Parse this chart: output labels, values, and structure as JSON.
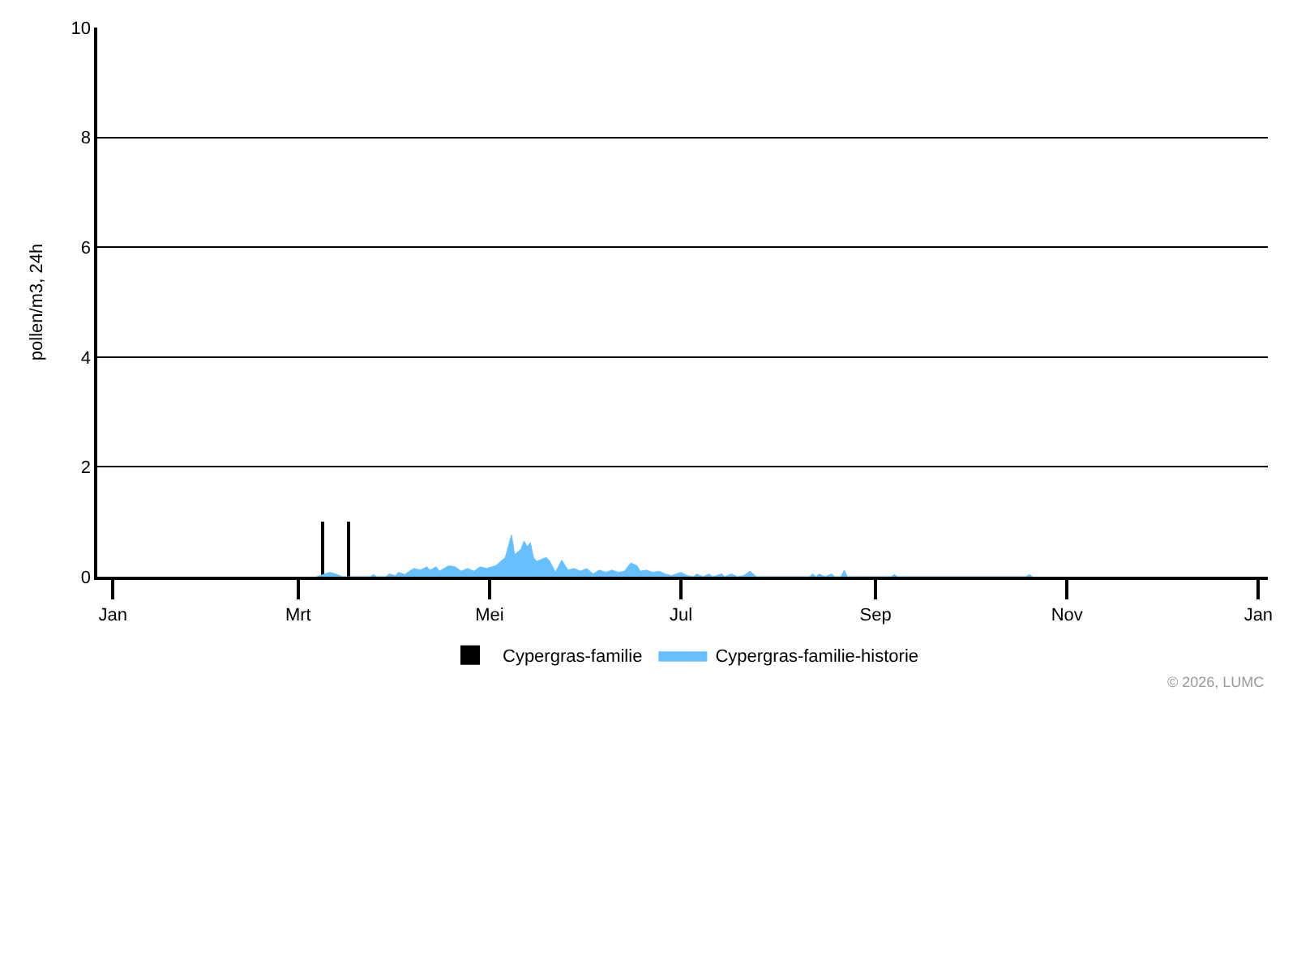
{
  "chart_data": {
    "type": "area",
    "ylabel": "pollen/m3, 24h",
    "xlim": [
      "2025-12-27",
      "2027-01-04"
    ],
    "xticks": [
      {
        "value": "2026-01-01",
        "label": "Jan"
      },
      {
        "value": "2026-03-01",
        "label": "Mrt"
      },
      {
        "value": "2026-05-01",
        "label": "Mei"
      },
      {
        "value": "2026-07-01",
        "label": "Jul"
      },
      {
        "value": "2026-09-01",
        "label": "Sep"
      },
      {
        "value": "2026-11-01",
        "label": "Nov"
      },
      {
        "value": "2027-01-01",
        "label": "Jan"
      }
    ],
    "ylim": [
      0,
      10
    ],
    "yticks": [
      0,
      2,
      4,
      6,
      8,
      10
    ],
    "grid": "y",
    "legend": "bottom",
    "series": [
      {
        "name": "Cypergras-familie",
        "type": "bar",
        "color": "#000000",
        "x": [
          "2026-03-09",
          "2026-03-17"
        ],
        "values": [
          1,
          1
        ]
      },
      {
        "name": "Cypergras-familie-historie",
        "color": "#66bfff",
        "x": [
          "2026-03-07",
          "2026-03-11",
          "2026-03-13",
          "2026-03-15",
          "2026-03-24",
          "2026-03-25",
          "2026-03-26",
          "2026-03-29",
          "2026-03-30",
          "2026-04-01",
          "2026-04-02",
          "2026-04-04",
          "2026-04-06",
          "2026-04-07",
          "2026-04-09",
          "2026-04-11",
          "2026-04-12",
          "2026-04-14",
          "2026-04-15",
          "2026-04-18",
          "2026-04-20",
          "2026-04-22",
          "2026-04-24",
          "2026-04-26",
          "2026-04-28",
          "2026-04-30",
          "2026-05-03",
          "2026-05-06",
          "2026-05-08",
          "2026-05-09",
          "2026-05-11",
          "2026-05-12",
          "2026-05-13",
          "2026-05-14",
          "2026-05-15",
          "2026-05-16",
          "2026-05-19",
          "2026-05-20",
          "2026-05-22",
          "2026-05-24",
          "2026-05-26",
          "2026-05-28",
          "2026-05-30",
          "2026-06-01",
          "2026-06-03",
          "2026-06-05",
          "2026-06-07",
          "2026-06-09",
          "2026-06-11",
          "2026-06-13",
          "2026-06-15",
          "2026-06-17",
          "2026-06-18",
          "2026-06-20",
          "2026-06-22",
          "2026-06-24",
          "2026-06-26",
          "2026-06-28",
          "2026-07-01",
          "2026-07-03",
          "2026-07-05",
          "2026-07-06",
          "2026-07-08",
          "2026-07-10",
          "2026-07-11",
          "2026-07-14",
          "2026-07-15",
          "2026-07-17",
          "2026-07-19",
          "2026-07-21",
          "2026-07-23",
          "2026-07-25",
          "2026-08-11",
          "2026-08-12",
          "2026-08-13",
          "2026-08-14",
          "2026-08-16",
          "2026-08-18",
          "2026-08-19",
          "2026-08-21",
          "2026-08-22",
          "2026-08-23",
          "2026-09-06",
          "2026-09-07",
          "2026-09-08",
          "2026-10-19",
          "2026-10-20",
          "2026-10-21"
        ],
        "values": [
          0,
          0.08,
          0.05,
          0,
          0,
          0.04,
          0,
          0,
          0.05,
          0.02,
          0.08,
          0.04,
          0.12,
          0.15,
          0.12,
          0.18,
          0.12,
          0.18,
          0.1,
          0.2,
          0.18,
          0.1,
          0.15,
          0.1,
          0.18,
          0.15,
          0.2,
          0.35,
          0.76,
          0.4,
          0.5,
          0.65,
          0.55,
          0.62,
          0.35,
          0.28,
          0.35,
          0.3,
          0.08,
          0.3,
          0.12,
          0.15,
          0.1,
          0.15,
          0.05,
          0.12,
          0.08,
          0.12,
          0.08,
          0.1,
          0.25,
          0.2,
          0.1,
          0.12,
          0.08,
          0.1,
          0.05,
          0.02,
          0.08,
          0.02,
          0,
          0.05,
          0,
          0.05,
          0,
          0.05,
          0,
          0.05,
          0,
          0.02,
          0.1,
          0,
          0,
          0.05,
          0,
          0.05,
          0,
          0.05,
          0,
          0,
          0.12,
          0,
          0,
          0.04,
          0,
          0,
          0.04,
          0
        ]
      }
    ],
    "annotations": [
      "© 2026, LUMC"
    ]
  }
}
